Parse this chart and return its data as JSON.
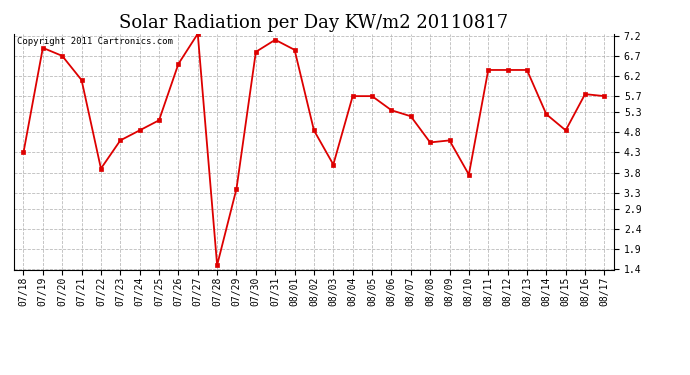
{
  "title": "Solar Radiation per Day KW/m2 20110817",
  "copyright_text": "Copyright 2011 Cartronics.com",
  "labels": [
    "07/18",
    "07/19",
    "07/20",
    "07/21",
    "07/22",
    "07/23",
    "07/24",
    "07/25",
    "07/26",
    "07/27",
    "07/28",
    "07/29",
    "07/30",
    "07/31",
    "08/01",
    "08/02",
    "08/03",
    "08/04",
    "08/05",
    "08/06",
    "08/07",
    "08/08",
    "08/09",
    "08/10",
    "08/11",
    "08/12",
    "08/13",
    "08/14",
    "08/15",
    "08/16",
    "08/17"
  ],
  "values": [
    4.3,
    6.9,
    6.7,
    6.1,
    3.9,
    4.6,
    4.85,
    5.1,
    6.5,
    7.25,
    1.5,
    3.4,
    6.8,
    7.1,
    6.85,
    4.85,
    4.0,
    5.7,
    5.7,
    5.35,
    5.2,
    4.55,
    4.6,
    3.75,
    6.35,
    6.35,
    6.35,
    5.25,
    4.85,
    5.75,
    5.7
  ],
  "line_color": "#dd0000",
  "marker_color": "#dd0000",
  "bg_color": "#ffffff",
  "grid_color": "#aaaaaa",
  "ylim_min": 1.4,
  "ylim_max": 7.2,
  "yticks": [
    1.4,
    1.9,
    2.4,
    2.9,
    3.3,
    3.8,
    4.3,
    4.8,
    5.3,
    5.7,
    6.2,
    6.7,
    7.2
  ],
  "title_fontsize": 13,
  "tick_fontsize": 7,
  "copyright_fontsize": 6.5
}
